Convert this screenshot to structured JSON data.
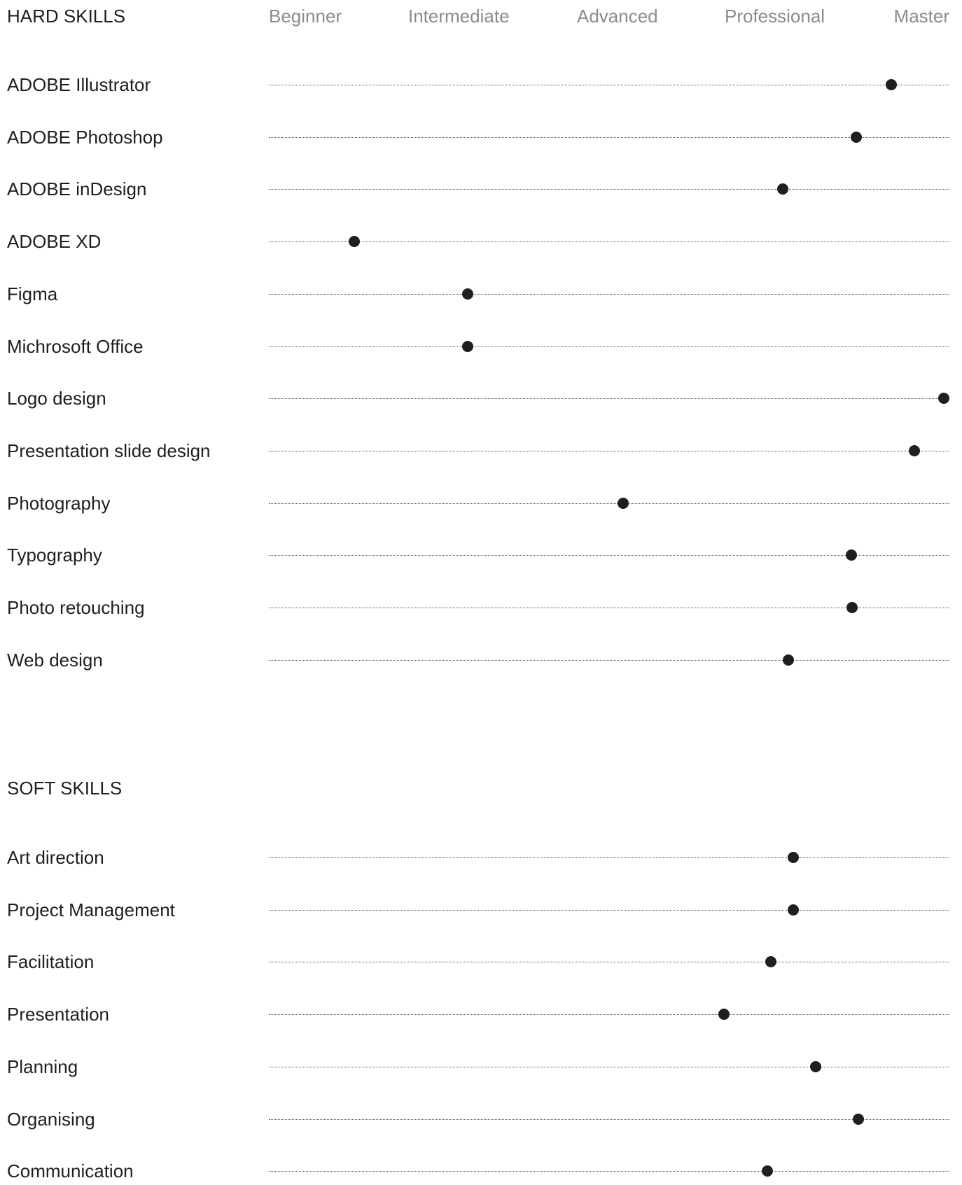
{
  "chart_data": {
    "type": "scatter",
    "x_levels": [
      "Beginner",
      "Intermediate",
      "Advanced",
      "Professional",
      "Master"
    ],
    "xlim": [
      0,
      1
    ],
    "sections": [
      {
        "title": "HARD SKILLS",
        "skills": [
          {
            "label": "ADOBE Illustrator",
            "value": 0.915
          },
          {
            "label": "ADOBE Photoshop",
            "value": 0.863
          },
          {
            "label": "ADOBE inDesign",
            "value": 0.755
          },
          {
            "label": "ADOBE XD",
            "value": 0.125
          },
          {
            "label": "Figma",
            "value": 0.292
          },
          {
            "label": "Michrosoft Office",
            "value": 0.292
          },
          {
            "label": "Logo design",
            "value": 0.992
          },
          {
            "label": "Presentation slide design",
            "value": 0.949
          },
          {
            "label": "Photography",
            "value": 0.521
          },
          {
            "label": "Typography",
            "value": 0.856
          },
          {
            "label": "Photo retouching",
            "value": 0.857
          },
          {
            "label": "Web design",
            "value": 0.763
          }
        ]
      },
      {
        "title": "SOFT SKILLS",
        "skills": [
          {
            "label": "Art direction",
            "value": 0.771
          },
          {
            "label": "Project Management",
            "value": 0.771
          },
          {
            "label": "Facilitation",
            "value": 0.738
          },
          {
            "label": "Presentation",
            "value": 0.669
          },
          {
            "label": "Planning",
            "value": 0.804
          },
          {
            "label": "Organising",
            "value": 0.866
          },
          {
            "label": "Communication",
            "value": 0.732
          }
        ]
      }
    ]
  },
  "colors": {
    "text": "#1f1f1f",
    "level_label": "#8b8b8b",
    "track": "#555555",
    "dot": "#1f1f1f"
  }
}
